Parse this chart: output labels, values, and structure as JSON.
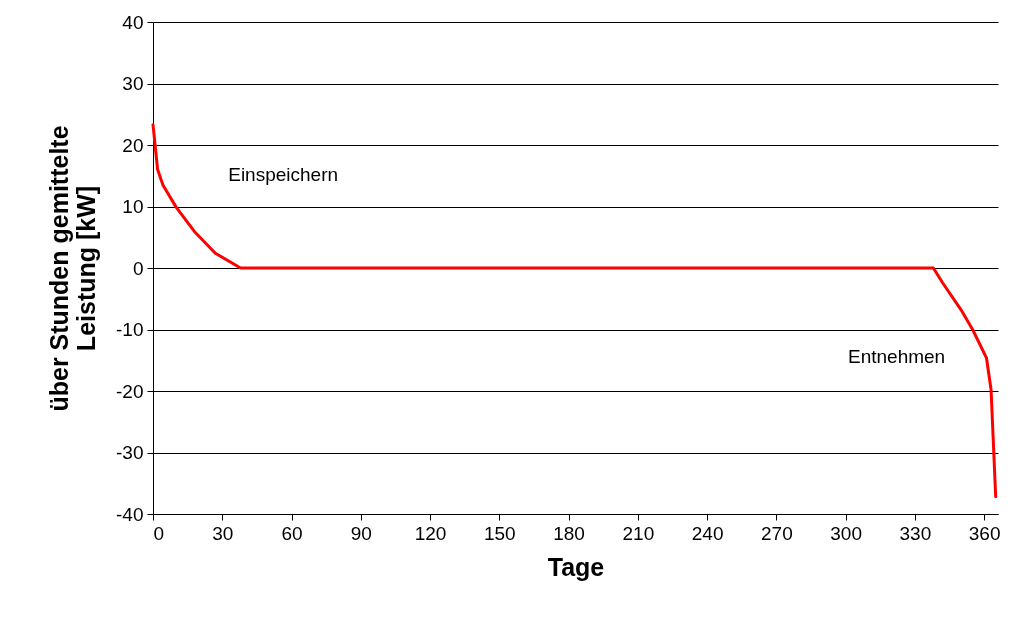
{
  "chart_data": {
    "type": "line",
    "xlabel": "Tage",
    "ylabel": "über Stunden gemittelte\nLeistung [kW]",
    "series": [
      {
        "color": "#ff0000",
        "x": [
          0,
          0.9,
          2,
          4.3,
          10,
          18,
          27,
          37,
          38,
          100,
          200,
          300,
          338,
          342,
          350,
          355,
          361,
          363,
          365
        ],
        "values": [
          23.3,
          20,
          16,
          13.5,
          9.9,
          5.9,
          2.4,
          0.2,
          0,
          0,
          0,
          0,
          0,
          -2.4,
          -6.8,
          -10,
          -14.6,
          -19.8,
          -37.2
        ]
      }
    ],
    "xlim": [
      0,
      366
    ],
    "xticks": [
      0,
      30,
      60,
      90,
      120,
      150,
      180,
      210,
      240,
      270,
      300,
      330,
      360
    ],
    "ylim": [
      -40,
      40
    ],
    "yticks": [
      -40,
      -30,
      -20,
      -10,
      0,
      10,
      20,
      30,
      40
    ],
    "grid": "y",
    "marker": "none",
    "line_style": "solid",
    "annotations": [
      "Einspeichern",
      "Entnehmen"
    ]
  }
}
